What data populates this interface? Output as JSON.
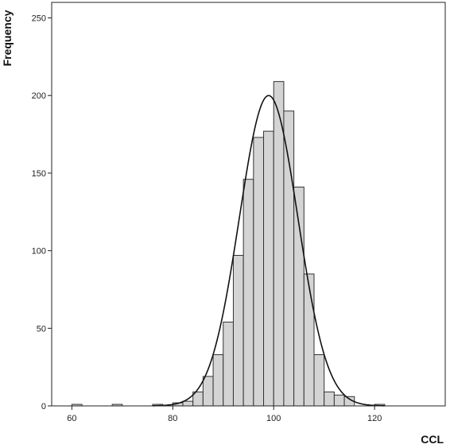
{
  "chart_data": {
    "type": "bar",
    "subtype": "histogram",
    "title": "",
    "xlabel": "CCL",
    "ylabel": "Frequency",
    "bin_width": 2,
    "xlim": [
      56,
      134
    ],
    "ylim": [
      0,
      260
    ],
    "x_ticks": [
      60,
      80,
      100,
      120
    ],
    "y_ticks": [
      0,
      50,
      100,
      150,
      200,
      250
    ],
    "bins": [
      {
        "start": 60,
        "end": 62,
        "count": 1
      },
      {
        "start": 68,
        "end": 70,
        "count": 1
      },
      {
        "start": 76,
        "end": 78,
        "count": 1
      },
      {
        "start": 80,
        "end": 82,
        "count": 2
      },
      {
        "start": 82,
        "end": 84,
        "count": 3
      },
      {
        "start": 84,
        "end": 86,
        "count": 9
      },
      {
        "start": 86,
        "end": 88,
        "count": 19
      },
      {
        "start": 88,
        "end": 90,
        "count": 33
      },
      {
        "start": 90,
        "end": 92,
        "count": 54
      },
      {
        "start": 92,
        "end": 94,
        "count": 97
      },
      {
        "start": 94,
        "end": 96,
        "count": 146
      },
      {
        "start": 96,
        "end": 98,
        "count": 173
      },
      {
        "start": 98,
        "end": 100,
        "count": 177
      },
      {
        "start": 100,
        "end": 102,
        "count": 209
      },
      {
        "start": 102,
        "end": 104,
        "count": 190
      },
      {
        "start": 104,
        "end": 106,
        "count": 141
      },
      {
        "start": 106,
        "end": 108,
        "count": 85
      },
      {
        "start": 108,
        "end": 110,
        "count": 33
      },
      {
        "start": 110,
        "end": 112,
        "count": 9
      },
      {
        "start": 112,
        "end": 114,
        "count": 7
      },
      {
        "start": 114,
        "end": 116,
        "count": 6
      },
      {
        "start": 120,
        "end": 122,
        "count": 1
      }
    ],
    "normal_curve": {
      "mean": 99,
      "peak": 200,
      "sd": 5.8
    },
    "bar_fill": "#d4d4d4",
    "bar_stroke": "#333333",
    "curve_color": "#111111",
    "grid": false
  }
}
